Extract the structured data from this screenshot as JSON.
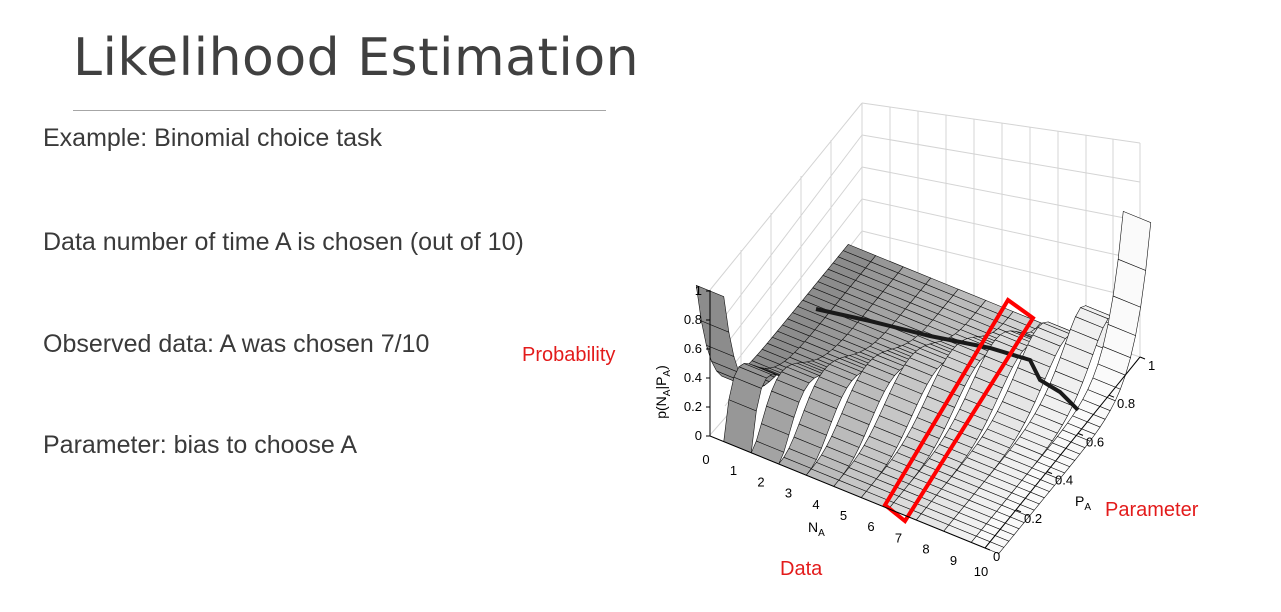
{
  "slide": {
    "title": "Likelihood Estimation",
    "bullets": [
      "Example: Binomial choice task",
      "Data number of time A is chosen (out of 10)",
      "Observed data: A was chosen 7/10",
      "Parameter: bias to choose A"
    ]
  },
  "figure": {
    "annotations": {
      "probability": "Probability",
      "parameter": "Parameter",
      "data": "Data"
    },
    "z_axis": {
      "label_main": "p(N",
      "label_sub1": "A",
      "label_mid": "|P",
      "label_sub2": "A",
      "label_end": ")",
      "ticks": [
        "0",
        "0.2",
        "0.4",
        "0.6",
        "0.8",
        "1"
      ]
    },
    "x_axis": {
      "label_main": "N",
      "label_sub": "A",
      "ticks": [
        "0",
        "1",
        "2",
        "3",
        "4",
        "5",
        "6",
        "7",
        "8",
        "9",
        "10"
      ]
    },
    "y_axis": {
      "label_main": "P",
      "label_sub": "A",
      "ticks": [
        "0",
        "0.2",
        "0.4",
        "0.6",
        "0.8",
        "1"
      ]
    },
    "highlight_color": "#ff0000"
  }
}
